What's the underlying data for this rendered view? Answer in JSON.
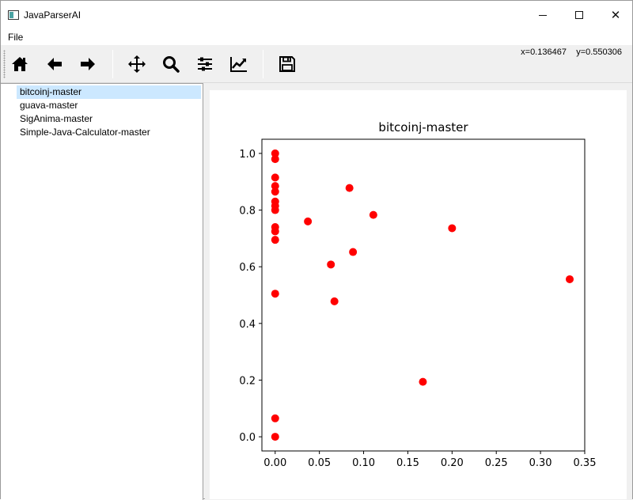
{
  "window": {
    "title": "JavaParserAI"
  },
  "menu": {
    "items": [
      "File"
    ]
  },
  "toolbar": {
    "buttons": [
      {
        "icon": "home-icon",
        "tooltip": "Home"
      },
      {
        "icon": "arrow-left-icon",
        "tooltip": "Back"
      },
      {
        "icon": "arrow-right-icon",
        "tooltip": "Forward"
      },
      {
        "icon": "move-icon",
        "tooltip": "Pan"
      },
      {
        "icon": "search-icon",
        "tooltip": "Zoom"
      },
      {
        "icon": "sliders-icon",
        "tooltip": "Subplots"
      },
      {
        "icon": "chart-line-icon",
        "tooltip": "Customize"
      },
      {
        "icon": "save-icon",
        "tooltip": "Save"
      }
    ],
    "coords_x": "x=0.136467",
    "coords_y": "y=0.550306"
  },
  "projects": [
    {
      "label": "bitcoinj-master",
      "selected": true
    },
    {
      "label": "guava-master",
      "selected": false
    },
    {
      "label": "SigAnima-master",
      "selected": false
    },
    {
      "label": "Simple-Java-Calculator-master",
      "selected": false
    }
  ],
  "colors": {
    "marker": "#ff0000",
    "selection": "#cce8ff"
  },
  "chart_data": {
    "type": "scatter",
    "title": "bitcoinj-master",
    "xlabel": "",
    "ylabel": "",
    "xlim": [
      -0.015,
      0.35
    ],
    "ylim": [
      -0.05,
      1.05
    ],
    "xticks": [
      "0.00",
      "0.05",
      "0.10",
      "0.15",
      "0.20",
      "0.25",
      "0.30",
      "0.35"
    ],
    "yticks": [
      "0.0",
      "0.2",
      "0.4",
      "0.6",
      "0.8",
      "1.0"
    ],
    "grid": false,
    "legend": false,
    "points": [
      {
        "x": 0.0,
        "y": 1.0
      },
      {
        "x": 0.0,
        "y": 0.98
      },
      {
        "x": 0.0,
        "y": 0.915
      },
      {
        "x": 0.0,
        "y": 0.885
      },
      {
        "x": 0.0,
        "y": 0.865
      },
      {
        "x": 0.0,
        "y": 0.83
      },
      {
        "x": 0.0,
        "y": 0.815
      },
      {
        "x": 0.0,
        "y": 0.8
      },
      {
        "x": 0.0,
        "y": 0.74
      },
      {
        "x": 0.0,
        "y": 0.725
      },
      {
        "x": 0.0,
        "y": 0.695
      },
      {
        "x": 0.0,
        "y": 0.505
      },
      {
        "x": 0.0,
        "y": 0.065
      },
      {
        "x": 0.0,
        "y": 0.0
      },
      {
        "x": 0.037,
        "y": 0.76
      },
      {
        "x": 0.063,
        "y": 0.608
      },
      {
        "x": 0.067,
        "y": 0.478
      },
      {
        "x": 0.084,
        "y": 0.878
      },
      {
        "x": 0.088,
        "y": 0.652
      },
      {
        "x": 0.111,
        "y": 0.783
      },
      {
        "x": 0.167,
        "y": 0.194
      },
      {
        "x": 0.2,
        "y": 0.736
      },
      {
        "x": 0.333,
        "y": 0.556
      }
    ]
  }
}
